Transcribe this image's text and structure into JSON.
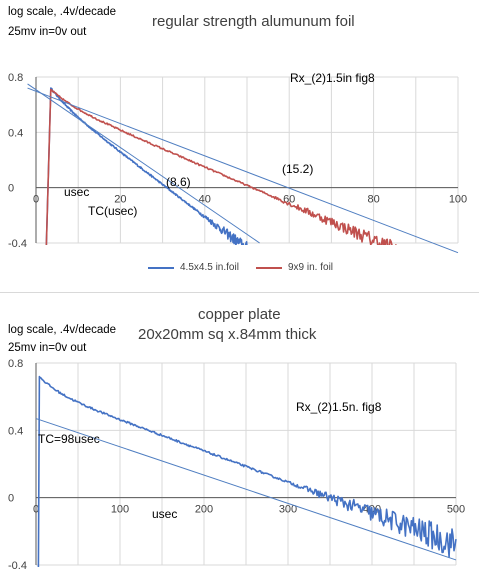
{
  "colors": {
    "blue": "#4472c4",
    "red": "#c0504d",
    "grid": "#d9d9d9",
    "axis": "#595959",
    "trend": "#4f7ec1"
  },
  "chart_data": [
    {
      "type": "line",
      "title": "regular strength alumunum foil",
      "ylabel_note": "log scale, .4v/decade",
      "subnote": "25mv in=0v out",
      "xlabel": "usec",
      "xlim": [
        0,
        100
      ],
      "ylim": [
        -0.4,
        0.8
      ],
      "x_ticks": [
        0,
        20,
        40,
        60,
        80,
        100
      ],
      "y_ticks": [
        -0.4,
        0,
        0.4,
        0.8
      ],
      "y_tick_labels": [
        "-0.4",
        "0",
        "0.4",
        "0.8"
      ],
      "grid": true,
      "legend_position": "bottom",
      "annotations": {
        "rx": "Rx_(2)1.5in fig8",
        "tc_label": "TC(usec)",
        "tc_a": "(8.6)",
        "tc_b": "(15.2)"
      },
      "series": [
        {
          "name": "4.5x4.5 in.foil",
          "color": "#4472c4",
          "rise_at": 3.5,
          "peak": 0.72,
          "slope": -0.0233,
          "knee": 8,
          "noise_from": 38,
          "end_x": 60
        },
        {
          "name": "9x9 in. foil",
          "color": "#c0504d",
          "rise_at": 3.5,
          "peak": 0.71,
          "slope": -0.0132,
          "knee": 9,
          "noise_from": 55,
          "end_x": 100
        }
      ],
      "trendlines": [
        {
          "x0": -2,
          "y0": 0.75,
          "x1": 53,
          "y1": -0.4
        },
        {
          "x0": -2,
          "y0": 0.72,
          "x1": 100,
          "y1": -0.47
        }
      ]
    },
    {
      "type": "line",
      "title": "copper plate",
      "subtitle": "20x20mm sq x.84mm thick",
      "ylabel_note": "log scale, .4v/decade",
      "subnote": "25mv in=0v out",
      "xlabel": "usec",
      "xlim": [
        0,
        500
      ],
      "ylim": [
        -0.4,
        0.8
      ],
      "x_ticks": [
        0,
        100,
        200,
        300,
        400,
        500
      ],
      "y_ticks": [
        -0.4,
        0,
        0.4,
        0.8
      ],
      "y_tick_labels": [
        "-0.4",
        "0",
        "0.4",
        "0.8"
      ],
      "grid": true,
      "annotations": {
        "rx": "Rx_(2)1.5n. fig8",
        "tc_label": "TC=98usec"
      },
      "series": [
        {
          "name": "",
          "color": "#4472c4",
          "rise_at": 4,
          "peak": 0.72,
          "slope": -0.00185,
          "knee": 40,
          "noise_from": 300,
          "end_x": 500
        }
      ],
      "trendlines": [
        {
          "x0": 0,
          "y0": 0.47,
          "x1": 500,
          "y1": -0.37
        }
      ]
    }
  ]
}
